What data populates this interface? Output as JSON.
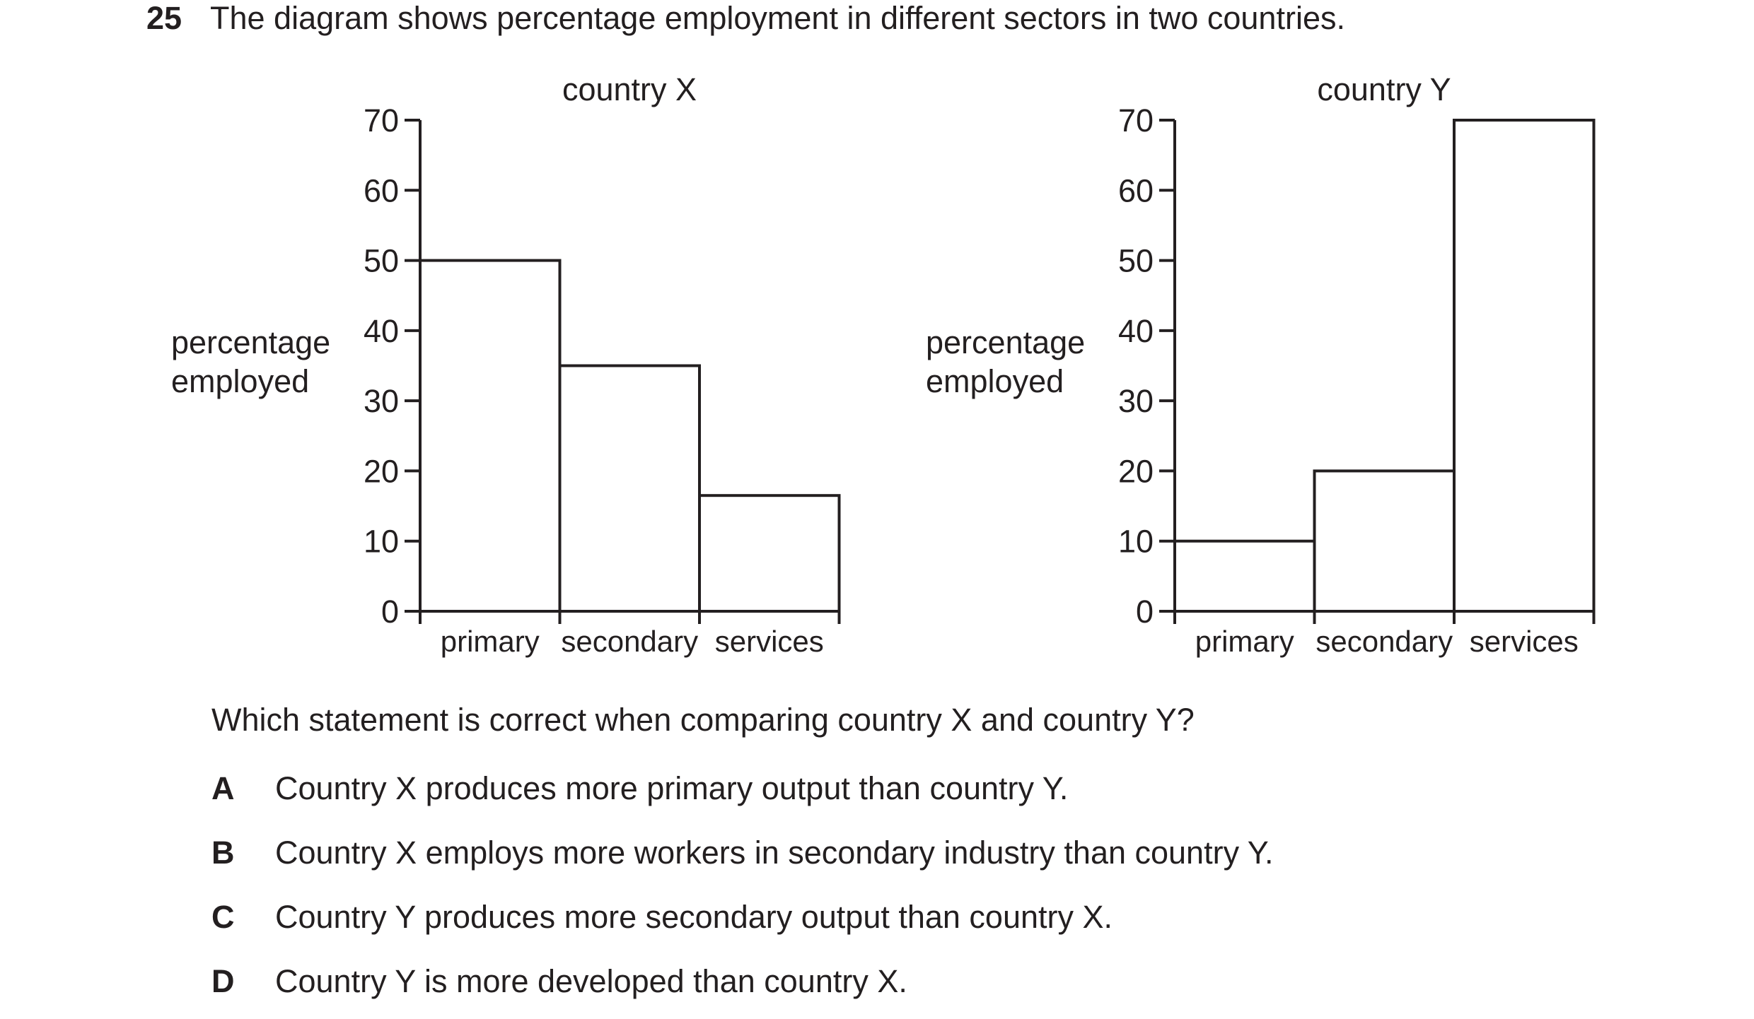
{
  "question": {
    "number": "25",
    "text": "The diagram shows percentage employment in different sectors in two countries."
  },
  "chart_data": [
    {
      "type": "bar",
      "title": "country X",
      "ylabel_lines": [
        "percentage",
        "employed"
      ],
      "categories": [
        "primary",
        "secondary",
        "services"
      ],
      "values": [
        50,
        35,
        16.5
      ],
      "ylim": [
        0,
        70
      ],
      "yticks": [
        0,
        10,
        20,
        30,
        40,
        50,
        60,
        70
      ],
      "grid": false,
      "legend": "none"
    },
    {
      "type": "bar",
      "title": "country Y",
      "ylabel_lines": [
        "percentage",
        "employed"
      ],
      "categories": [
        "primary",
        "secondary",
        "services"
      ],
      "values": [
        10,
        20,
        70
      ],
      "ylim": [
        0,
        70
      ],
      "yticks": [
        0,
        10,
        20,
        30,
        40,
        50,
        60,
        70
      ],
      "grid": false,
      "legend": "none"
    }
  ],
  "stem": "Which statement is correct when comparing country X and country Y?",
  "options": [
    {
      "letter": "A",
      "text": "Country X produces more primary output than country Y."
    },
    {
      "letter": "B",
      "text": "Country X employs more workers in secondary industry than country Y."
    },
    {
      "letter": "C",
      "text": "Country Y produces more secondary output than country X."
    },
    {
      "letter": "D",
      "text": "Country Y is more developed than country X."
    }
  ],
  "colors": {
    "ink": "#231f20",
    "background": "#ffffff"
  }
}
